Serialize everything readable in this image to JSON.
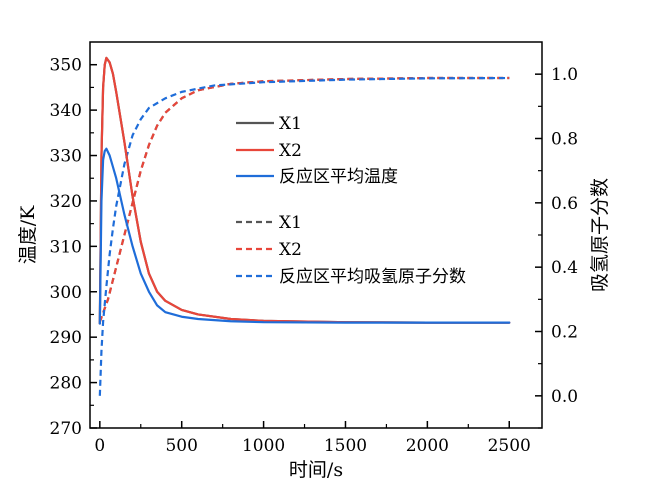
{
  "chart_data": {
    "type": "line",
    "title": "",
    "xlabel": "时间/s",
    "ylabel_left": "温度/K",
    "ylabel_right": "吸氢原子分数",
    "xlim": [
      -60,
      2700
    ],
    "ylim_left": [
      270,
      355
    ],
    "ylim_right": [
      -0.1,
      1.1
    ],
    "x_ticks": [
      0,
      500,
      1000,
      1500,
      2000,
      2500
    ],
    "y_left_ticks": [
      270,
      280,
      290,
      300,
      310,
      320,
      330,
      340,
      350
    ],
    "y_right_ticks": [
      0.0,
      0.2,
      0.4,
      0.6,
      0.8,
      1.0
    ],
    "y_right_tick_labels": [
      "0.0",
      "0.2",
      "0.4",
      "0.6",
      "0.8",
      "1.0"
    ],
    "grid": false,
    "legend_position": "center",
    "series": [
      {
        "name": "X1",
        "axis": "left",
        "style": "solid",
        "color": "#555555",
        "points": [
          [
            0,
            293
          ],
          [
            10,
            330
          ],
          [
            20,
            345
          ],
          [
            30,
            350
          ],
          [
            40,
            351.5
          ],
          [
            60,
            350.5
          ],
          [
            80,
            348
          ],
          [
            100,
            344
          ],
          [
            150,
            333
          ],
          [
            200,
            321
          ],
          [
            250,
            311
          ],
          [
            300,
            304
          ],
          [
            350,
            300
          ],
          [
            400,
            298
          ],
          [
            500,
            296
          ],
          [
            600,
            295
          ],
          [
            800,
            294
          ],
          [
            1000,
            293.6
          ],
          [
            1500,
            293.3
          ],
          [
            2000,
            293.2
          ],
          [
            2500,
            293.2
          ]
        ]
      },
      {
        "name": "X2",
        "axis": "left",
        "style": "solid",
        "color": "#e8463a",
        "points": [
          [
            0,
            293
          ],
          [
            10,
            330
          ],
          [
            20,
            345
          ],
          [
            30,
            350
          ],
          [
            40,
            351.5
          ],
          [
            60,
            350.5
          ],
          [
            80,
            348
          ],
          [
            100,
            344
          ],
          [
            150,
            333
          ],
          [
            200,
            321
          ],
          [
            250,
            311
          ],
          [
            300,
            304
          ],
          [
            350,
            300
          ],
          [
            400,
            298
          ],
          [
            500,
            296
          ],
          [
            600,
            295
          ],
          [
            800,
            294
          ],
          [
            1000,
            293.6
          ],
          [
            1500,
            293.3
          ],
          [
            2000,
            293.2
          ],
          [
            2500,
            293.2
          ]
        ]
      },
      {
        "name": "反应区平均温度",
        "axis": "left",
        "style": "solid",
        "color": "#1f6dd9",
        "points": [
          [
            0,
            293
          ],
          [
            10,
            320
          ],
          [
            20,
            329
          ],
          [
            30,
            331
          ],
          [
            40,
            331.5
          ],
          [
            60,
            330
          ],
          [
            80,
            327.5
          ],
          [
            100,
            325
          ],
          [
            150,
            317
          ],
          [
            200,
            310
          ],
          [
            250,
            304
          ],
          [
            300,
            300
          ],
          [
            350,
            297
          ],
          [
            400,
            295.5
          ],
          [
            500,
            294.5
          ],
          [
            600,
            294
          ],
          [
            800,
            293.5
          ],
          [
            1000,
            293.3
          ],
          [
            1500,
            293.2
          ],
          [
            2000,
            293.2
          ],
          [
            2500,
            293.2
          ]
        ]
      },
      {
        "name": "X1",
        "axis": "right",
        "style": "dashed",
        "color": "#555555",
        "points": [
          [
            0,
            0.23
          ],
          [
            50,
            0.3
          ],
          [
            100,
            0.4
          ],
          [
            150,
            0.5
          ],
          [
            200,
            0.6
          ],
          [
            250,
            0.7
          ],
          [
            300,
            0.78
          ],
          [
            350,
            0.84
          ],
          [
            400,
            0.88
          ],
          [
            500,
            0.925
          ],
          [
            600,
            0.95
          ],
          [
            800,
            0.97
          ],
          [
            1000,
            0.978
          ],
          [
            1500,
            0.985
          ],
          [
            2000,
            0.988
          ],
          [
            2500,
            0.988
          ]
        ]
      },
      {
        "name": "X2",
        "axis": "right",
        "style": "dashed",
        "color": "#e8463a",
        "points": [
          [
            0,
            0.23
          ],
          [
            50,
            0.3
          ],
          [
            100,
            0.4
          ],
          [
            150,
            0.5
          ],
          [
            200,
            0.6
          ],
          [
            250,
            0.7
          ],
          [
            300,
            0.78
          ],
          [
            350,
            0.84
          ],
          [
            400,
            0.88
          ],
          [
            500,
            0.925
          ],
          [
            600,
            0.95
          ],
          [
            800,
            0.97
          ],
          [
            1000,
            0.978
          ],
          [
            1500,
            0.985
          ],
          [
            2000,
            0.988
          ],
          [
            2500,
            0.988
          ]
        ]
      },
      {
        "name": "反应区平均吸氢原子分数",
        "axis": "right",
        "style": "dashed",
        "color": "#1f6dd9",
        "points": [
          [
            0,
            0.0
          ],
          [
            10,
            0.14
          ],
          [
            20,
            0.23
          ],
          [
            40,
            0.34
          ],
          [
            60,
            0.44
          ],
          [
            80,
            0.52
          ],
          [
            100,
            0.59
          ],
          [
            150,
            0.72
          ],
          [
            200,
            0.81
          ],
          [
            250,
            0.86
          ],
          [
            300,
            0.895
          ],
          [
            400,
            0.925
          ],
          [
            500,
            0.945
          ],
          [
            700,
            0.965
          ],
          [
            1000,
            0.975
          ],
          [
            1500,
            0.983
          ],
          [
            2000,
            0.987
          ],
          [
            2500,
            0.988
          ]
        ]
      }
    ]
  }
}
